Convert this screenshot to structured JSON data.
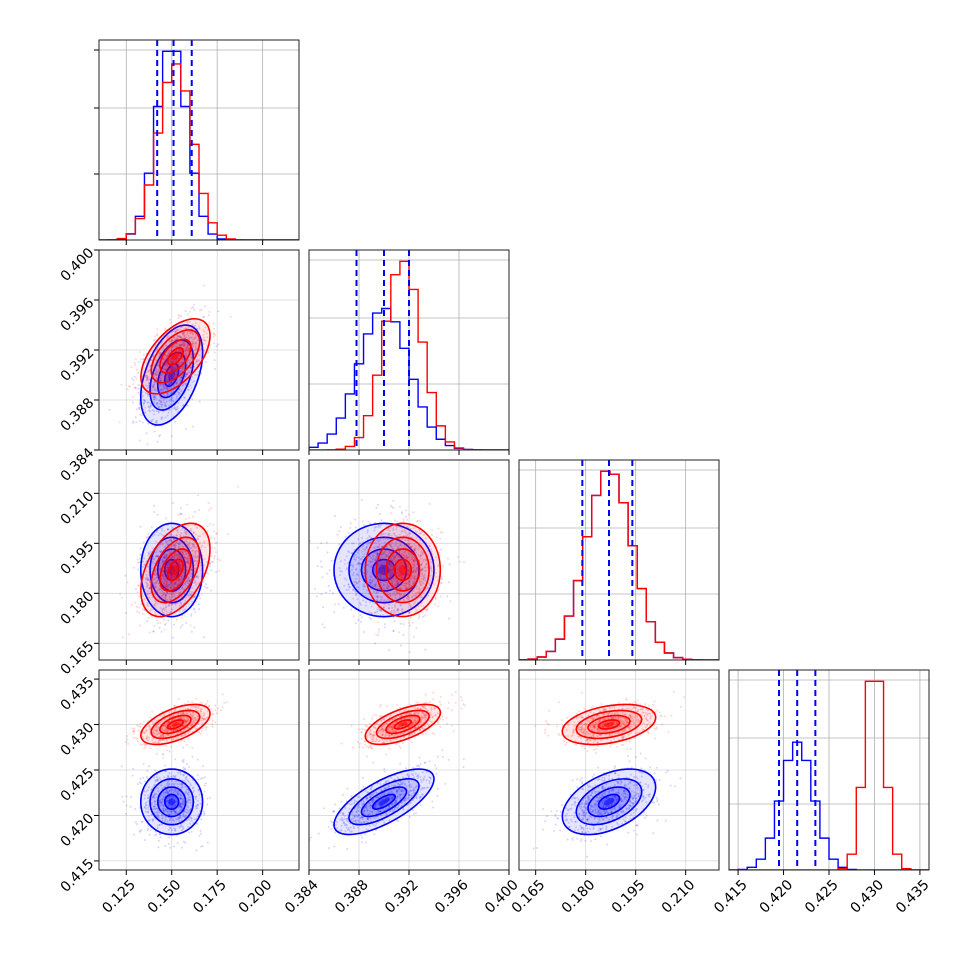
{
  "colors": {
    "series_a": "#0000ff",
    "series_b": "#ff0000"
  },
  "chart_data": {
    "type": "scatter",
    "variant": "corner-plot",
    "title": "",
    "grid": true,
    "parameters": [
      {
        "range": [
          0.11,
          0.22
        ],
        "ticks": [
          0.125,
          0.15,
          0.175,
          0.2
        ],
        "tick_labels": [
          "0.125",
          "0.150",
          "0.175",
          "0.200"
        ]
      },
      {
        "range": [
          0.384,
          0.4
        ],
        "ticks": [
          0.384,
          0.388,
          0.392,
          0.396,
          0.4
        ],
        "tick_labels": [
          "0.384",
          "0.388",
          "0.392",
          "0.396",
          "0.400"
        ]
      },
      {
        "range": [
          0.16,
          0.22
        ],
        "ticks": [
          0.165,
          0.18,
          0.195,
          0.21
        ],
        "tick_labels": [
          "0.165",
          "0.180",
          "0.195",
          "0.210"
        ]
      },
      {
        "range": [
          0.414,
          0.436
        ],
        "ticks": [
          0.415,
          0.42,
          0.425,
          0.43,
          0.435
        ],
        "tick_labels": [
          "0.415",
          "0.420",
          "0.425",
          "0.430",
          "0.435"
        ]
      }
    ],
    "series": [
      {
        "color": "#0000ff",
        "mean": [
          0.15,
          0.39,
          0.187,
          0.4215
        ],
        "std": [
          0.0085,
          0.002,
          0.007,
          0.0018
        ],
        "quantiles": [
          [
            0.142,
            0.151,
            0.161
          ],
          [
            0.3878,
            0.39,
            0.392
          ],
          [
            0.179,
            0.187,
            0.194
          ],
          [
            0.4195,
            0.4215,
            0.4235
          ]
        ],
        "correlations": [
          [
            0,
            1,
            0.45
          ],
          [
            0,
            2,
            0.0
          ],
          [
            0,
            3,
            0.0
          ],
          [
            1,
            2,
            0.0
          ],
          [
            1,
            3,
            0.7
          ],
          [
            2,
            3,
            0.45
          ]
        ]
      },
      {
        "color": "#ff0000",
        "mean": [
          0.152,
          0.3915,
          0.187,
          0.43
        ],
        "std": [
          0.0095,
          0.0015,
          0.007,
          0.0011
        ],
        "quantiles": null,
        "correlations": [
          [
            0,
            1,
            0.55
          ],
          [
            0,
            2,
            0.45
          ],
          [
            0,
            3,
            0.55
          ],
          [
            1,
            2,
            0.0
          ],
          [
            1,
            3,
            0.6
          ],
          [
            2,
            3,
            0.35
          ]
        ]
      }
    ]
  }
}
